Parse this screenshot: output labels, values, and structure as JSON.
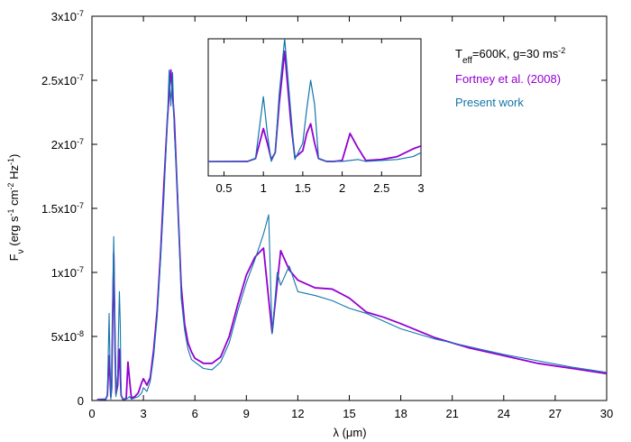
{
  "chart_data": [
    {
      "type": "line",
      "xlabel": "λ (μm)",
      "ylabel": {
        "base": "F",
        "sub": "ν",
        "rest1": " (erg s",
        "sup1": "-1",
        "rest2": " cm",
        "sup2": "-2",
        "rest3": " Hz",
        "sup3": "-1",
        "rest4": ")"
      },
      "xlim": [
        0,
        30
      ],
      "ylim": [
        0,
        3e-07
      ],
      "x_ticks": [
        0,
        3,
        6,
        9,
        12,
        15,
        18,
        21,
        24,
        27,
        30
      ],
      "x_tick_labels": [
        "0",
        "3",
        "6",
        "9",
        "12",
        "15",
        "18",
        "21",
        "24",
        "27",
        "30"
      ],
      "y_ticks": [
        0,
        5e-08,
        1e-07,
        1.5e-07,
        2e-07,
        2.5e-07,
        3e-07
      ],
      "y_tick_labels": [
        {
          "mant": "0",
          "exp": ""
        },
        {
          "mant": "5x10",
          "exp": "-8"
        },
        {
          "mant": "1x10",
          "exp": "-7"
        },
        {
          "mant": "1.5x10",
          "exp": "-7"
        },
        {
          "mant": "2x10",
          "exp": "-7"
        },
        {
          "mant": "2.5x10",
          "exp": "-7"
        },
        {
          "mant": "3x10",
          "exp": "-7"
        }
      ],
      "annotation": {
        "t": "T",
        "sub": "eff",
        "mid": "=600K, g=30 ms",
        "sup": "-2"
      },
      "legend_position": "top-right",
      "series": [
        {
          "name": "Fortney et al. (2008)",
          "color": "#9400d3",
          "x": [
            0.3,
            0.8,
            0.9,
            1.0,
            1.05,
            1.1,
            1.15,
            1.2,
            1.27,
            1.35,
            1.4,
            1.5,
            1.55,
            1.6,
            1.65,
            1.7,
            1.8,
            1.9,
            2.0,
            2.1,
            2.2,
            2.3,
            2.5,
            2.7,
            2.9,
            3.0,
            3.2,
            3.4,
            3.6,
            3.8,
            4.0,
            4.2,
            4.4,
            4.6,
            4.8,
            5.0,
            5.2,
            5.4,
            5.6,
            5.8,
            6.0,
            6.5,
            7.0,
            7.5,
            8.0,
            8.5,
            9.0,
            9.5,
            10.0,
            10.5,
            11.0,
            11.5,
            12.0,
            13.0,
            14.0,
            15.0,
            16.0,
            17.0,
            18.0,
            20.0,
            22.0,
            24.0,
            26.0,
            28.0,
            30.0
          ],
          "y": [
            8e-10,
            1e-09,
            4e-09,
            3.5e-08,
            2e-08,
            3e-09,
            1e-08,
            6e-08,
            1.15e-07,
            4e-08,
            5e-09,
            1.2e-08,
            3e-08,
            4e-08,
            2e-08,
            4e-09,
            1e-09,
            1e-09,
            2e-09,
            3e-08,
            1.5e-08,
            2e-09,
            3e-09,
            6e-09,
            1.4e-08,
            1.7e-08,
            1.2e-08,
            1.8e-08,
            4e-08,
            7e-08,
            1.15e-07,
            1.7e-07,
            2.2e-07,
            2.58e-07,
            2.2e-07,
            1.55e-07,
            9e-08,
            6e-08,
            4.5e-08,
            3.8e-08,
            3.3e-08,
            2.9e-08,
            2.9e-08,
            3.4e-08,
            5e-08,
            7.5e-08,
            9.8e-08,
            1.12e-07,
            1.19e-07,
            5.3e-08,
            1.17e-07,
            1.02e-07,
            9.4e-08,
            8.8e-08,
            8.7e-08,
            8e-08,
            6.9e-08,
            6.5e-08,
            6e-08,
            4.9e-08,
            4.1e-08,
            3.5e-08,
            2.9e-08,
            2.5e-08,
            2.1e-08
          ]
        },
        {
          "name": "Present work",
          "color": "#1276a8",
          "x": [
            0.3,
            0.8,
            0.9,
            1.0,
            1.05,
            1.1,
            1.15,
            1.2,
            1.27,
            1.35,
            1.4,
            1.5,
            1.55,
            1.6,
            1.65,
            1.7,
            1.8,
            1.9,
            2.0,
            2.1,
            2.2,
            2.3,
            2.5,
            2.7,
            2.9,
            3.0,
            3.2,
            3.4,
            3.6,
            3.8,
            4.0,
            4.2,
            4.4,
            4.5,
            4.6,
            4.7,
            4.8,
            5.0,
            5.2,
            5.4,
            5.6,
            5.8,
            6.0,
            6.5,
            7.0,
            7.5,
            8.0,
            8.5,
            9.0,
            9.5,
            10.0,
            10.3,
            10.5,
            10.8,
            11.0,
            11.5,
            12.0,
            13.0,
            14.0,
            15.0,
            16.0,
            17.0,
            18.0,
            20.0,
            22.0,
            24.0,
            26.0,
            28.0,
            30.0
          ],
          "y": [
            5e-10,
            1e-09,
            4e-09,
            6.8e-08,
            3e-08,
            1e-09,
            1e-08,
            7e-08,
            1.28e-07,
            5e-08,
            3e-09,
            2e-08,
            5.5e-08,
            8.5e-08,
            6e-08,
            4e-09,
            1e-09,
            1e-09,
            1e-09,
            2e-09,
            3e-09,
            1e-09,
            2e-09,
            3e-09,
            6e-09,
            1e-08,
            7e-09,
            1.5e-08,
            3.5e-08,
            6.5e-08,
            1.1e-07,
            1.6e-07,
            2.2e-07,
            2.58e-07,
            2.3e-07,
            2.56e-07,
            2.1e-07,
            1.6e-07,
            8e-08,
            5.5e-08,
            4e-08,
            3.2e-08,
            3e-08,
            2.5e-08,
            2.4e-08,
            3e-08,
            4.5e-08,
            7e-08,
            9.2e-08,
            1.1e-07,
            1.3e-07,
            1.45e-07,
            5.2e-08,
            1e-07,
            9e-08,
            1.05e-07,
            8.5e-08,
            8.2e-08,
            7.8e-08,
            7.2e-08,
            6.8e-08,
            6.2e-08,
            5.6e-08,
            4.8e-08,
            4.2e-08,
            3.6e-08,
            3.1e-08,
            2.6e-08,
            2.2e-08
          ]
        }
      ]
    },
    {
      "type": "line",
      "xlim": [
        0.3,
        3
      ],
      "x_ticks": [
        0.5,
        1,
        1.5,
        2,
        2.5,
        3
      ],
      "x_tick_labels": [
        "0.5",
        "1",
        "1.5",
        "2",
        "2.5",
        "3"
      ]
    }
  ]
}
